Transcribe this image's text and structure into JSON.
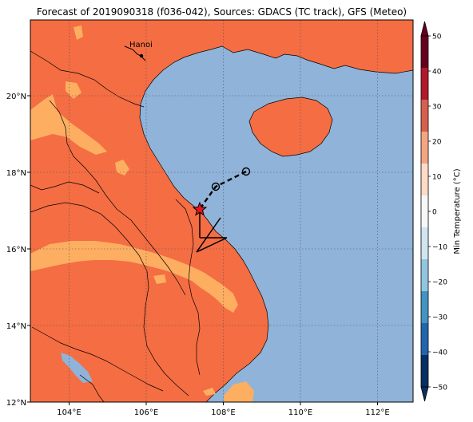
{
  "title": "Forecast of 2019090318 (f036-042), Sources: GDACS (TC track), GFS (Meteo)",
  "city_label": "Hanoi",
  "lon_ticks": [
    "104°E",
    "106°E",
    "108°E",
    "110°E",
    "112°E"
  ],
  "lat_ticks": [
    "20°N",
    "18°N",
    "16°N",
    "14°N",
    "12°N"
  ],
  "colorbar": {
    "label": "Min Temperature (°C)",
    "ticks": [
      "50",
      "40",
      "30",
      "20",
      "10",
      "0",
      "−10",
      "−20",
      "−30",
      "−40",
      "−50"
    ],
    "band_colors": [
      "#67001f",
      "#b2182b",
      "#d6604d",
      "#f4a582",
      "#fddbc7",
      "#f7f7f7",
      "#d1e5f0",
      "#92c5de",
      "#4393c3",
      "#2166ac",
      "#053061"
    ]
  },
  "colors": {
    "sea": "#8fb3d9",
    "land_warm": "#f46d43",
    "land_mild": "#fdae61",
    "land_cool": "#8fb3d9"
  },
  "track": {
    "points_lonlat": [
      [
        108.6,
        18.0
      ],
      [
        107.8,
        17.6
      ],
      [
        107.4,
        17.0
      ]
    ],
    "current_position_lonlat": [
      107.4,
      17.0
    ]
  }
}
